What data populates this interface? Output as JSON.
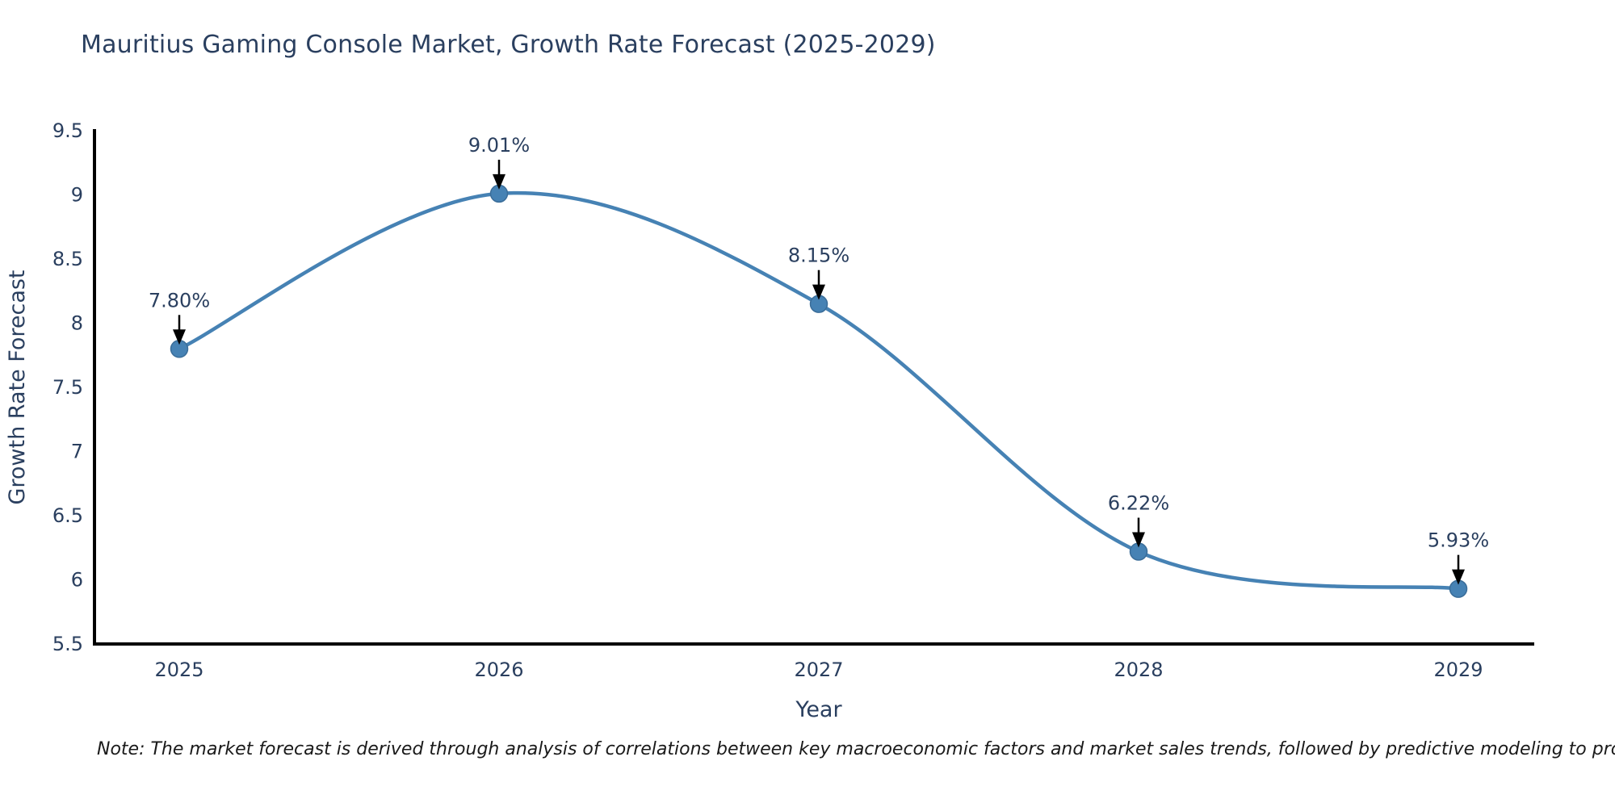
{
  "title": "Mauritius Gaming Console Market, Growth Rate Forecast (2025-2029)",
  "note": "Note: The market forecast is derived through analysis of correlations between key macroeconomic factors and market sales trends, followed by predictive modeling to project future sales",
  "chart_data": {
    "type": "line",
    "title": "Mauritius Gaming Console Market, Growth Rate Forecast (2025-2029)",
    "xlabel": "Year",
    "ylabel": "Growth Rate Forecast",
    "x": [
      2025,
      2026,
      2027,
      2028,
      2029
    ],
    "xticks": [
      "2025",
      "2026",
      "2027",
      "2028",
      "2029"
    ],
    "values": [
      7.8,
      9.01,
      8.15,
      6.22,
      5.93
    ],
    "point_labels": [
      "7.80%",
      "9.01%",
      "8.15%",
      "6.22%",
      "5.93%"
    ],
    "ylim": [
      5.5,
      9.5
    ],
    "yticks": [
      5.5,
      6,
      6.5,
      7,
      7.5,
      8,
      8.5,
      9,
      9.5
    ],
    "line_shape": "spline",
    "marker": "circle",
    "grid": false,
    "legend": "none",
    "colors": {
      "line": "#4682b4",
      "marker_fill": "#4682b4",
      "marker_stroke": "#3a6d99",
      "axis": "#000000",
      "text": "#2a3f5f",
      "annotation_arrow": "#000000",
      "note_text": "#1a1a1a",
      "background": "#ffffff"
    }
  }
}
